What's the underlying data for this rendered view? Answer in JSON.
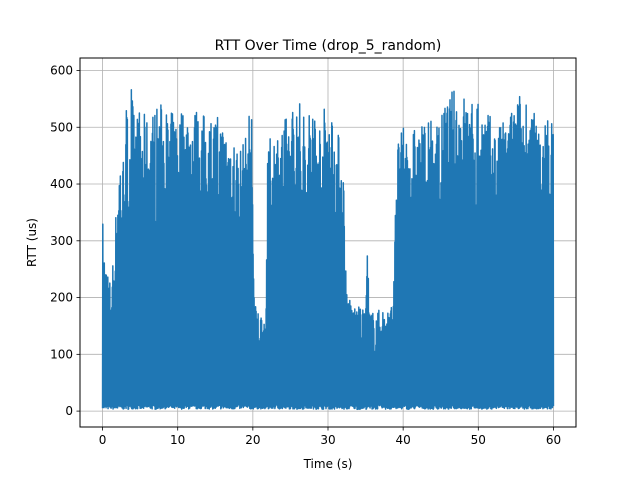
{
  "chart_data": {
    "type": "line",
    "title": "RTT Over Time (drop_5_random)",
    "xlabel": "Time (s)",
    "ylabel": "RTT (us)",
    "xlim": [
      -3,
      63
    ],
    "ylim": [
      -28,
      622
    ],
    "xticks": [
      0,
      10,
      20,
      30,
      40,
      50,
      60
    ],
    "yticks": [
      0,
      100,
      200,
      300,
      400,
      500,
      600
    ],
    "grid": true,
    "series_color": "#1f77b4",
    "envelope": {
      "x": [
        0,
        0.05,
        0.3,
        0.6,
        1.0,
        1.5,
        2.0,
        2.3,
        2.7,
        3.0,
        3.5,
        3.8,
        4.2,
        5,
        6,
        7,
        8,
        9,
        10,
        11,
        12,
        13,
        14,
        15,
        16,
        17,
        18,
        19,
        19.5,
        19.9,
        20.2,
        20.5,
        21.0,
        21.5,
        21.7,
        22.0,
        22.5,
        23,
        24,
        25,
        26,
        27,
        28,
        29,
        30,
        31,
        31.8,
        32.0,
        32.5,
        33,
        34,
        35,
        35.2,
        35.5,
        36,
        37,
        38,
        38.7,
        39.0,
        39.5,
        40,
        41,
        42,
        43,
        44,
        45,
        46,
        47,
        48,
        49,
        50,
        51,
        52,
        53,
        54,
        55,
        56,
        57,
        58,
        59,
        59.7,
        60.0
      ],
      "upper": [
        415,
        300,
        280,
        260,
        230,
        280,
        410,
        470,
        440,
        560,
        510,
        593,
        520,
        535,
        515,
        540,
        545,
        525,
        535,
        540,
        540,
        530,
        520,
        525,
        515,
        510,
        470,
        480,
        530,
        545,
        190,
        185,
        175,
        170,
        165,
        470,
        490,
        500,
        510,
        535,
        555,
        520,
        550,
        515,
        560,
        510,
        470,
        460,
        215,
        195,
        185,
        175,
        318,
        180,
        175,
        180,
        185,
        190,
        470,
        485,
        500,
        500,
        500,
        515,
        510,
        520,
        560,
        570,
        565,
        545,
        560,
        535,
        510,
        505,
        525,
        550,
        573,
        545,
        505,
        520,
        525,
        490
      ],
      "lower": [
        5,
        4,
        3,
        3,
        4,
        3,
        3,
        4,
        3,
        4,
        3,
        4,
        4,
        3,
        4,
        3,
        4,
        4,
        3,
        4,
        3,
        4,
        4,
        3,
        4,
        3,
        4,
        4,
        3,
        4,
        3,
        4,
        4,
        3,
        4,
        3,
        4,
        4,
        3,
        4,
        3,
        4,
        4,
        3,
        4,
        3,
        4,
        3,
        3,
        4,
        3,
        3,
        4,
        3,
        3,
        4,
        3,
        3,
        4,
        3,
        4,
        3,
        4,
        4,
        3,
        4,
        3,
        4,
        4,
        3,
        4,
        3,
        4,
        4,
        3,
        4,
        3,
        4,
        4,
        3,
        4,
        5
      ]
    }
  }
}
